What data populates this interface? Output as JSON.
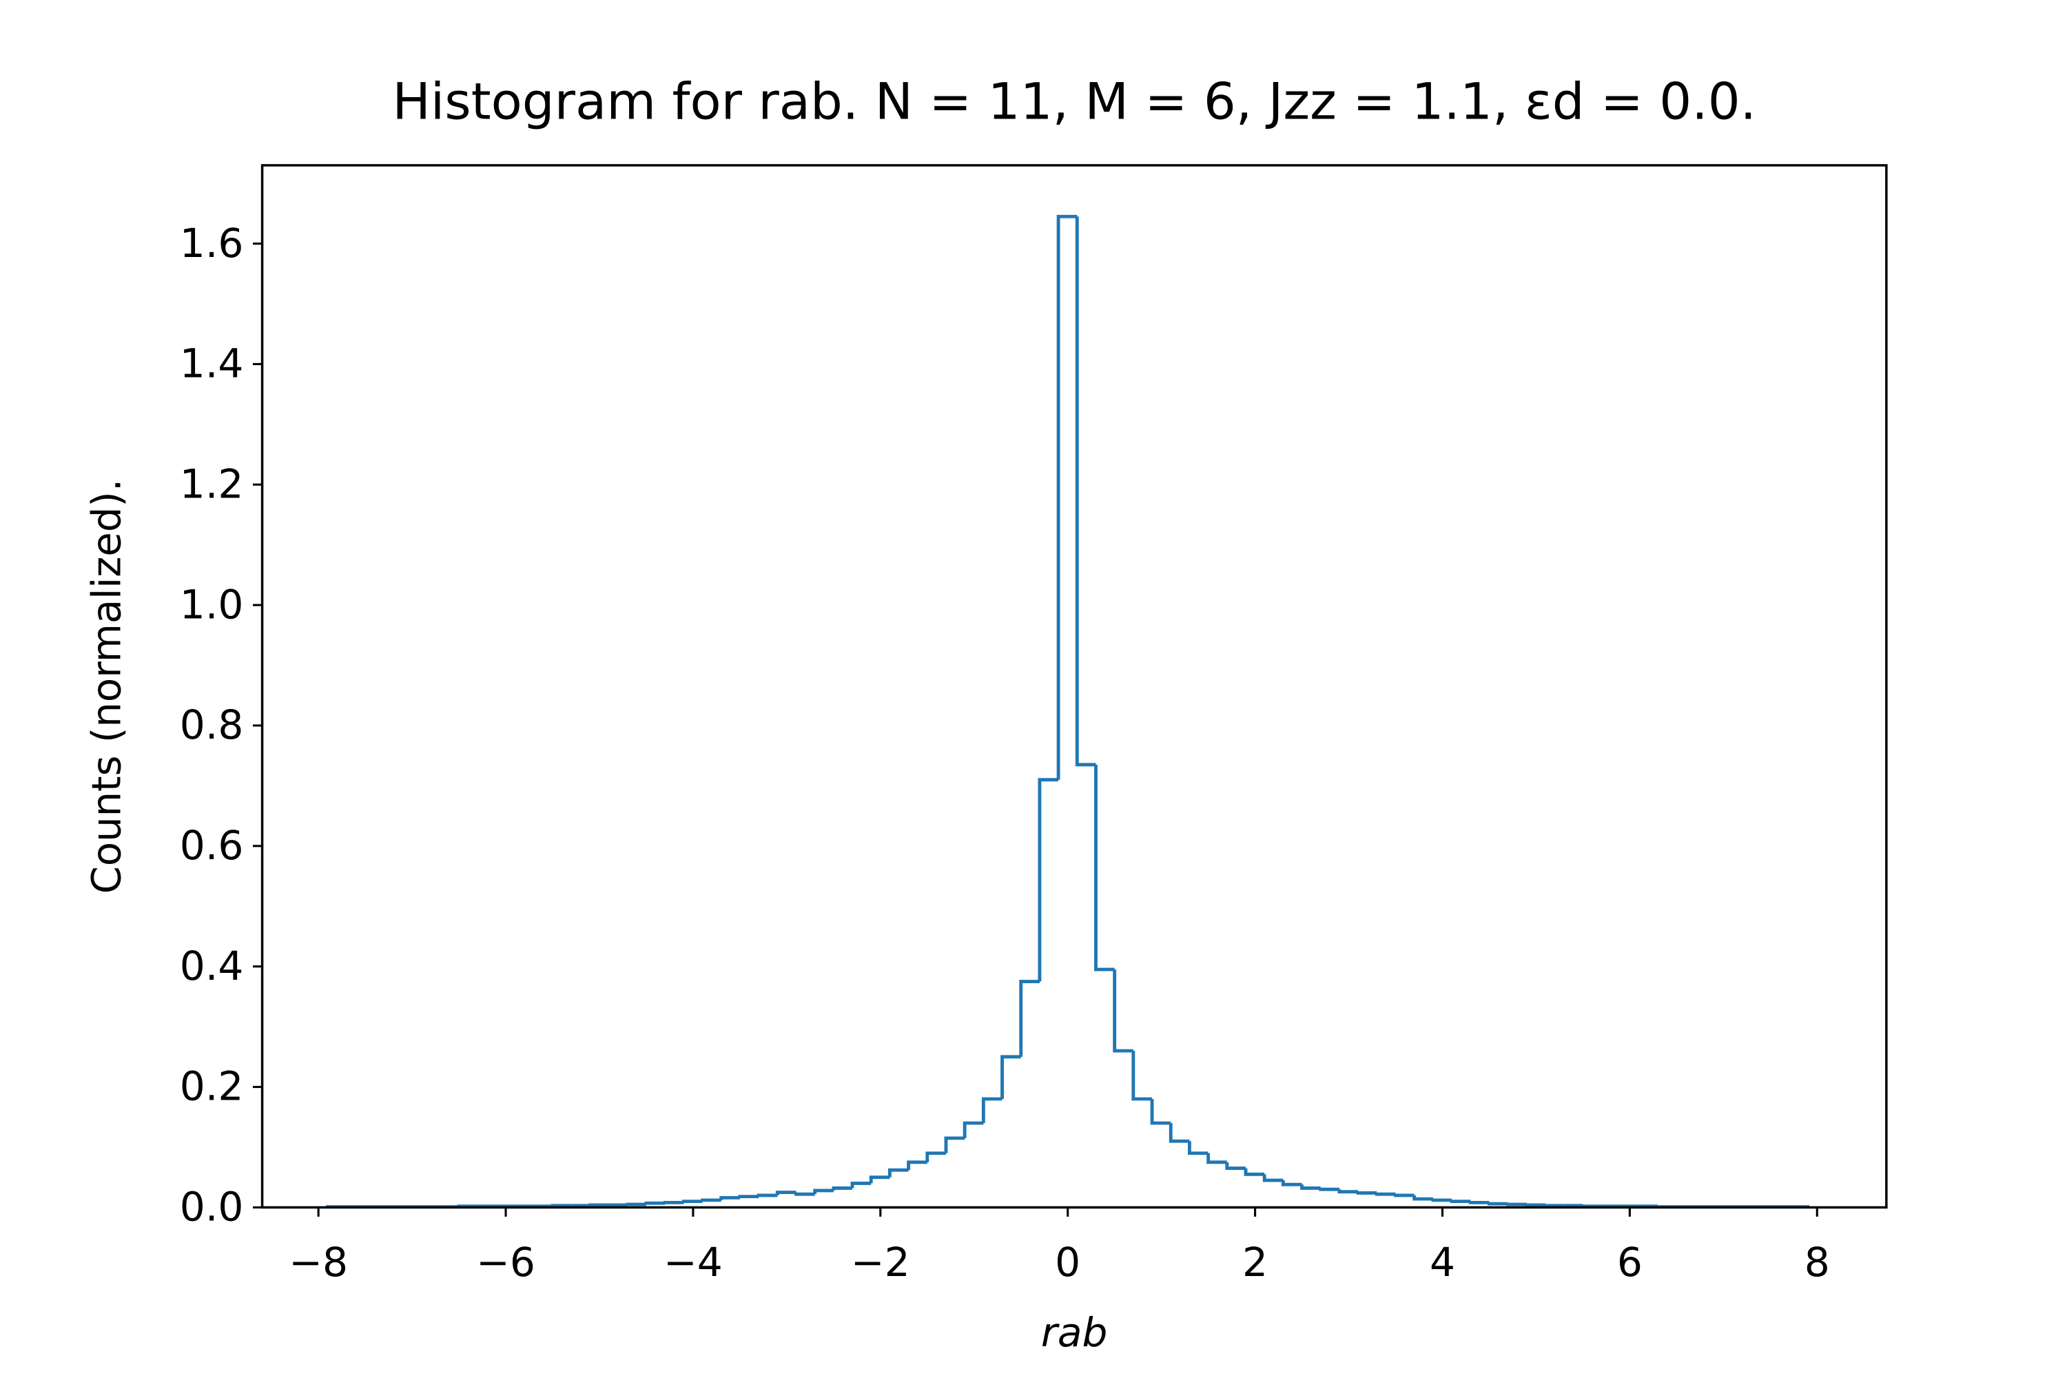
{
  "chart_data": {
    "type": "histogram",
    "title": "Histogram for rab. N = 11, M = 6, Jzz = 1.1, εd = 0.0.",
    "xlabel": "rab",
    "ylabel": "Counts (normalized).",
    "color": "#1f77b4",
    "bins": [
      -7.9,
      -7.7,
      -7.5,
      -7.3,
      -7.1,
      -6.9,
      -6.7,
      -6.5,
      -6.3,
      -6.1,
      -5.9,
      -5.7,
      -5.5,
      -5.3,
      -5.1,
      -4.9,
      -4.7,
      -4.5,
      -4.3,
      -4.1,
      -3.9,
      -3.7,
      -3.5,
      -3.3,
      -3.1,
      -2.9,
      -2.7,
      -2.5,
      -2.3,
      -2.1,
      -1.9,
      -1.7,
      -1.5,
      -1.3,
      -1.1,
      -0.9,
      -0.7,
      -0.5,
      -0.3,
      -0.1,
      0.1,
      0.3,
      0.5,
      0.7,
      0.9,
      1.1,
      1.3,
      1.5,
      1.7,
      1.9,
      2.1,
      2.3,
      2.5,
      2.7,
      2.9,
      3.1,
      3.3,
      3.5,
      3.7,
      3.9,
      4.1,
      4.3,
      4.5,
      4.7,
      4.9,
      5.1,
      5.3,
      5.5,
      5.7,
      5.9,
      6.1,
      6.3,
      6.5,
      6.7,
      6.9,
      7.1,
      7.3,
      7.5,
      7.7,
      7.9
    ],
    "counts": [
      0.001,
      0.001,
      0.001,
      0.001,
      0.001,
      0.001,
      0.001,
      0.002,
      0.002,
      0.002,
      0.002,
      0.002,
      0.003,
      0.003,
      0.004,
      0.004,
      0.005,
      0.007,
      0.008,
      0.01,
      0.012,
      0.016,
      0.018,
      0.02,
      0.025,
      0.022,
      0.028,
      0.032,
      0.04,
      0.05,
      0.062,
      0.075,
      0.09,
      0.115,
      0.14,
      0.18,
      0.25,
      0.375,
      0.71,
      1.645,
      0.735,
      0.395,
      0.26,
      0.18,
      0.14,
      0.11,
      0.09,
      0.075,
      0.065,
      0.055,
      0.045,
      0.038,
      0.032,
      0.03,
      0.026,
      0.024,
      0.022,
      0.02,
      0.014,
      0.012,
      0.01,
      0.008,
      0.006,
      0.005,
      0.004,
      0.003,
      0.003,
      0.002,
      0.002,
      0.002,
      0.002,
      0.001,
      0.001,
      0.001,
      0.001,
      0.001,
      0.001,
      0.001,
      0.001
    ],
    "xlim": [
      -8.6,
      8.74
    ],
    "ylim": [
      0,
      1.73
    ],
    "xticks": [
      {
        "value": -8,
        "label": "−8"
      },
      {
        "value": -6,
        "label": "−6"
      },
      {
        "value": -4,
        "label": "−4"
      },
      {
        "value": -2,
        "label": "−2"
      },
      0,
      2,
      4,
      6,
      8
    ],
    "yticks": [
      {
        "value": 0,
        "label": "0.0"
      },
      0.2,
      0.4,
      0.6,
      0.8,
      {
        "value": 1,
        "label": "1.0"
      },
      1.2,
      1.4,
      1.6
    ]
  }
}
